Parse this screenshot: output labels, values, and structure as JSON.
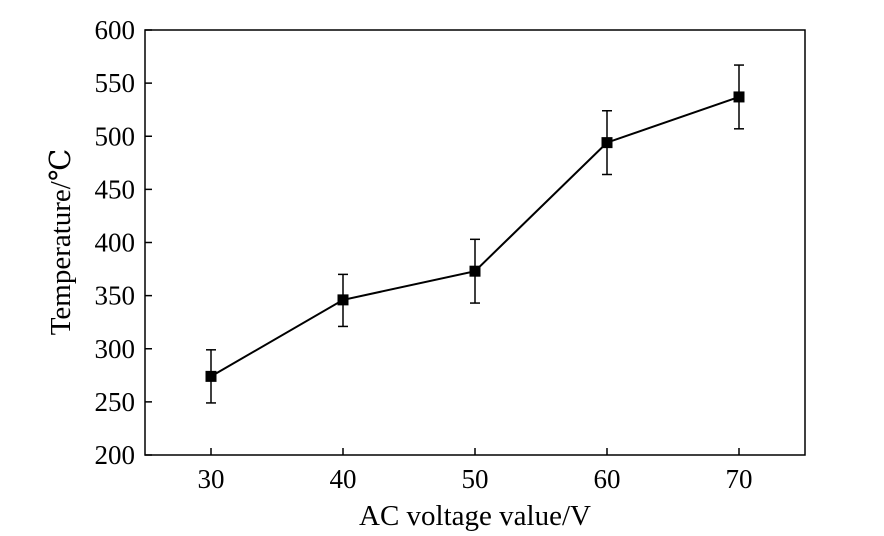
{
  "chart_data": {
    "type": "line",
    "title": "",
    "xlabel": "AC voltage value/V",
    "ylabel": "Temperature/℃",
    "x": [
      30,
      40,
      50,
      60,
      70
    ],
    "x_ticks": [
      "30",
      "40",
      "50",
      "60",
      "70"
    ],
    "xlim": [
      25,
      75
    ],
    "ylim": [
      200,
      600
    ],
    "y_ticks": [
      "200",
      "250",
      "300",
      "350",
      "400",
      "450",
      "500",
      "550",
      "600"
    ],
    "grid": false,
    "series": [
      {
        "name": "Temperature",
        "values": [
          274,
          346,
          373,
          494,
          537
        ],
        "error_lower": [
          25,
          25,
          30,
          30,
          30
        ],
        "error_upper": [
          25,
          24,
          30,
          30,
          30
        ],
        "marker": "square",
        "color": "#000000"
      }
    ]
  }
}
